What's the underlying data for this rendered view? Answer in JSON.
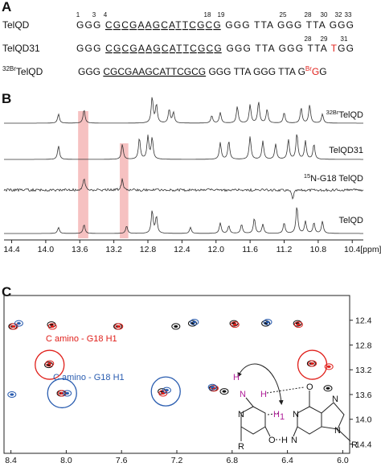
{
  "panel_labels": [
    "A",
    "B",
    "C"
  ],
  "sequences": [
    {
      "name": "TelQD",
      "numbers": [
        "1",
        "3",
        "4",
        "18",
        "19",
        "25",
        "28",
        "30",
        "32",
        "33"
      ],
      "parts": [
        "GGG ",
        "CGCGAAGCATTCGCG",
        " GGG TTA GGG TTA GGG"
      ]
    },
    {
      "name": "TelQD31",
      "numbers": [
        "28",
        "29",
        "31"
      ],
      "parts": [
        "GGG ",
        "CGCGAAGCATTCGCG",
        " GGG TTA GGG TTA ",
        "T",
        "GG"
      ]
    },
    {
      "name": {
        "sup": "32Br",
        "text": "TelQD"
      },
      "parts": [
        "GGG ",
        "CGCGAAGCATTCGCG",
        " GGG TTA GGG TTA G",
        "Br",
        "G",
        "G"
      ]
    }
  ],
  "chart_data": [
    {
      "type": "line",
      "x_unit": "[ppm]",
      "xlim": [
        14.49,
        10.27
      ],
      "xticks": [
        14.4,
        {
          "value": 14,
          "label": "14.0"
        },
        13.6,
        13.2,
        12.8,
        12.4,
        {
          "value": 12,
          "label": "12.0"
        },
        11.6,
        11.2,
        10.8,
        10.4
      ],
      "highlights": [
        [
          13.62,
          13.5
        ],
        [
          13.13,
          13.03
        ]
      ],
      "highlight_color": "#f4b6b6",
      "series": [
        {
          "name": {
            "sup": "32Br",
            "text": "TelQD"
          },
          "color": "#333333",
          "peaks_x": [
            13.85,
            13.55,
            12.75,
            12.7,
            12.55,
            12.5,
            12.05,
            11.95,
            11.75,
            11.6,
            11.5,
            11.4,
            11.2,
            11.0,
            10.9,
            10.75
          ],
          "peaks_h": [
            0.3,
            0.45,
            0.85,
            0.6,
            0.45,
            0.35,
            0.25,
            0.35,
            0.55,
            0.6,
            0.7,
            0.45,
            0.35,
            0.5,
            0.6,
            0.3
          ]
        },
        {
          "name": {
            "text": "TelQD31"
          },
          "color": "#333333",
          "peaks_x": [
            13.85,
            13.1,
            12.9,
            12.8,
            12.75,
            11.95,
            11.85,
            11.6,
            11.45,
            11.3,
            11.15,
            11.05,
            10.95,
            10.85
          ],
          "peaks_h": [
            0.45,
            0.5,
            0.7,
            0.75,
            0.7,
            0.55,
            0.6,
            0.75,
            0.6,
            0.5,
            0.65,
            0.85,
            0.6,
            0.5
          ]
        },
        {
          "name": {
            "sup": "15",
            "text": "N-G18 TelQD"
          },
          "color": "#333333",
          "noisy": true,
          "peaks_x": [
            13.55,
            13.1,
            11.1
          ],
          "peaks_h": [
            0.4,
            0.35,
            -0.3
          ]
        },
        {
          "name": {
            "text": "TelQD"
          },
          "color": "#333333",
          "peaks_x": [
            13.85,
            13.55,
            13.05,
            12.75,
            12.7,
            12.3,
            11.95,
            11.85,
            11.7,
            11.55,
            11.45,
            11.2,
            11.05,
            10.95,
            10.85,
            10.75
          ],
          "peaks_h": [
            0.2,
            0.3,
            0.25,
            0.75,
            0.55,
            0.2,
            0.35,
            0.25,
            0.3,
            0.5,
            0.3,
            0.35,
            0.9,
            0.4,
            0.35,
            0.4
          ]
        }
      ]
    },
    {
      "type": "scatter",
      "xlim": [
        8.45,
        5.95
      ],
      "ylim": [
        12.0,
        14.55
      ],
      "xticks": [
        8.4,
        {
          "value": 8,
          "label": "8.0"
        },
        7.6,
        7.2,
        6.8,
        6.4,
        {
          "value": 6,
          "label": "6.0"
        }
      ],
      "yticks": [
        12.4,
        12.8,
        13.2,
        13.6,
        {
          "value": 14,
          "label": "14.0"
        },
        14.4
      ],
      "series": [
        {
          "color": "#111111",
          "x": [
            8.38,
            8.1,
            7.62,
            7.2,
            7.08,
            6.78,
            6.55,
            6.32,
            8.12,
            6.22,
            8.03,
            7.3,
            6.93,
            6.85,
            6.1
          ],
          "y": [
            12.5,
            12.47,
            12.5,
            12.5,
            12.45,
            12.45,
            12.45,
            12.45,
            13.12,
            13.1,
            13.58,
            13.55,
            13.5,
            13.55,
            13.5
          ]
        },
        {
          "color": "#e0201b",
          "x": [
            8.38,
            8.1,
            7.62,
            6.78,
            6.32,
            8.12,
            6.22,
            8.03,
            7.3,
            6.93,
            6.1
          ],
          "y": [
            12.5,
            12.5,
            12.5,
            12.47,
            12.47,
            13.1,
            13.1,
            13.58,
            13.58,
            13.5,
            13.15
          ]
        },
        {
          "color": "#2a5db0",
          "x": [
            8.35,
            7.08,
            6.55,
            8.4,
            7.28,
            6.95,
            8.0
          ],
          "y": [
            12.45,
            12.43,
            12.43,
            13.6,
            13.53,
            13.48,
            13.58
          ]
        }
      ],
      "circles": [
        {
          "x": 8.12,
          "y": 13.12,
          "color": "#e0201b"
        },
        {
          "x": 6.22,
          "y": 13.12,
          "color": "#e0201b"
        },
        {
          "x": 8.03,
          "y": 13.58,
          "color": "#2a5db0"
        },
        {
          "x": 7.28,
          "y": 13.55,
          "color": "#2a5db0"
        }
      ],
      "labels": [
        {
          "text": "C amino - G18 H1",
          "color": "#e0201b"
        },
        {
          "text": "C amino - G18 H1",
          "color": "#2a5db0"
        }
      ]
    }
  ],
  "structure": {
    "labels": [
      "H",
      "N",
      "H",
      "H",
      "1",
      "N",
      "O",
      "N",
      "R",
      "O",
      "H",
      "N",
      "N",
      "N",
      "R"
    ]
  }
}
